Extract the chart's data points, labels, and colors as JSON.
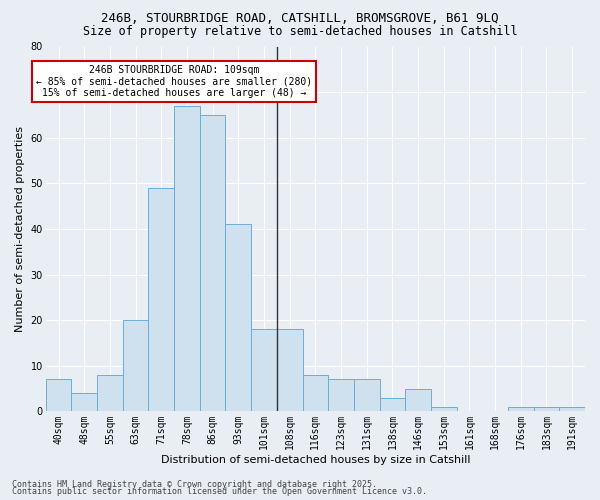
{
  "title1": "246B, STOURBRIDGE ROAD, CATSHILL, BROMSGROVE, B61 9LQ",
  "title2": "Size of property relative to semi-detached houses in Catshill",
  "xlabel": "Distribution of semi-detached houses by size in Catshill",
  "ylabel": "Number of semi-detached properties",
  "categories": [
    "40sqm",
    "48sqm",
    "55sqm",
    "63sqm",
    "71sqm",
    "78sqm",
    "86sqm",
    "93sqm",
    "101sqm",
    "108sqm",
    "116sqm",
    "123sqm",
    "131sqm",
    "138sqm",
    "146sqm",
    "153sqm",
    "161sqm",
    "168sqm",
    "176sqm",
    "183sqm",
    "191sqm"
  ],
  "values": [
    7,
    4,
    8,
    20,
    49,
    67,
    65,
    41,
    18,
    18,
    8,
    7,
    7,
    3,
    5,
    1,
    0,
    0,
    1,
    1,
    1
  ],
  "bar_color": "#cfe0ef",
  "bar_edge_color": "#6aaed6",
  "highlight_index": 9,
  "highlight_line_color": "#333333",
  "annotation_text": "246B STOURBRIDGE ROAD: 109sqm\n← 85% of semi-detached houses are smaller (280)\n15% of semi-detached houses are larger (48) →",
  "annotation_box_color": "#ffffff",
  "annotation_edge_color": "#cc0000",
  "ylim": [
    0,
    80
  ],
  "yticks": [
    0,
    10,
    20,
    30,
    40,
    50,
    60,
    70,
    80
  ],
  "footer1": "Contains HM Land Registry data © Crown copyright and database right 2025.",
  "footer2": "Contains public sector information licensed under the Open Government Licence v3.0.",
  "bg_color": "#e8eef4",
  "plot_bg_color": "#e8eef4",
  "title_fontsize": 9,
  "subtitle_fontsize": 8.5,
  "axis_label_fontsize": 8,
  "tick_fontsize": 7,
  "annotation_fontsize": 7,
  "footer_fontsize": 6
}
